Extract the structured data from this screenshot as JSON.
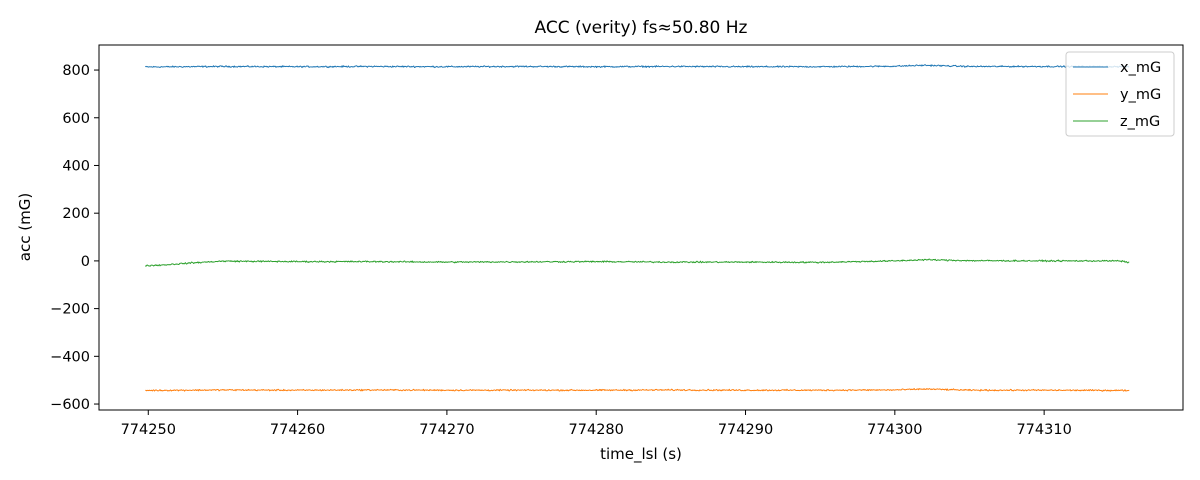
{
  "chart_data": {
    "type": "line",
    "title": "ACC (verity)  fs≈50.80 Hz",
    "xlabel": "time_lsl (s)",
    "ylabel": "acc (mG)",
    "xlim": [
      774246.7,
      774319.3
    ],
    "ylim": [
      -625,
      905
    ],
    "x_ticks": [
      774250,
      774260,
      774270,
      774280,
      774290,
      774300,
      774310
    ],
    "x_tick_labels": [
      "774250",
      "774260",
      "774270",
      "774280",
      "774290",
      "774300",
      "774310"
    ],
    "y_ticks": [
      800,
      600,
      400,
      200,
      0,
      -200,
      -400,
      -600
    ],
    "y_tick_labels": [
      "800",
      "600",
      "400",
      "200",
      "0",
      "−200",
      "−400",
      "−600"
    ],
    "x_range": [
      774249.8,
      774315.7
    ],
    "sampling_hz": 50.8,
    "grid": false,
    "legend_position": "top-right",
    "series": [
      {
        "name": "x_mG",
        "color": "#1f77b4",
        "x": [
          774249.8,
          774255,
          774260,
          774265,
          774270,
          774275,
          774280,
          774285,
          774290,
          774295,
          774300,
          774302,
          774305,
          774310,
          774315.7
        ],
        "values": [
          813,
          815,
          814,
          815,
          814,
          815,
          814,
          815,
          814,
          814,
          816,
          820,
          815,
          815,
          814
        ],
        "noise": 3
      },
      {
        "name": "y_mG",
        "color": "#ff7f0e",
        "x": [
          774249.8,
          774255,
          774260,
          774265,
          774270,
          774275,
          774280,
          774285,
          774290,
          774295,
          774300,
          774302,
          774305,
          774310,
          774315.7
        ],
        "values": [
          -543,
          -541,
          -542,
          -541,
          -542,
          -542,
          -542,
          -541,
          -542,
          -542,
          -541,
          -537,
          -542,
          -542,
          -543
        ],
        "noise": 3
      },
      {
        "name": "z_mG",
        "color": "#2ca02c",
        "x": [
          774249.8,
          774251,
          774253,
          774255,
          774260,
          774265,
          774270,
          774275,
          774280,
          774285,
          774290,
          774295,
          774300,
          774302,
          774305,
          774310,
          774315,
          774315.7
        ],
        "values": [
          -20,
          -17,
          -8,
          -1,
          -3,
          -3,
          -5,
          -4,
          -3,
          -5,
          -5,
          -6,
          0,
          5,
          1,
          0,
          0,
          -6
        ],
        "noise": 3
      }
    ]
  }
}
